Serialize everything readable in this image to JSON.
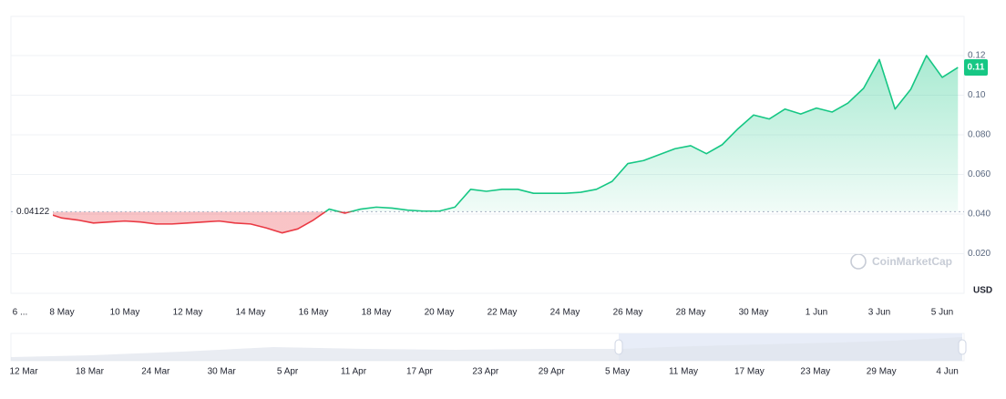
{
  "chart_data": {
    "type": "line",
    "categories": [
      "6 ...",
      null,
      null,
      "8 May",
      null,
      null,
      null,
      "10 May",
      null,
      null,
      null,
      "12 May",
      null,
      null,
      null,
      "14 May",
      null,
      null,
      null,
      "16 May",
      null,
      null,
      null,
      "18 May",
      null,
      null,
      null,
      "20 May",
      null,
      null,
      null,
      "22 May",
      null,
      null,
      null,
      "24 May",
      null,
      null,
      null,
      "26 May",
      null,
      null,
      null,
      "28 May",
      null,
      null,
      null,
      "30 May",
      null,
      null,
      null,
      "1 Jun",
      null,
      null,
      null,
      "3 Jun",
      null,
      null,
      null,
      "5 Jun",
      null
    ],
    "values": [
      0.0412,
      0.041,
      0.0405,
      0.038,
      0.037,
      0.0355,
      0.036,
      0.0365,
      0.036,
      0.035,
      0.035,
      0.0355,
      0.036,
      0.0365,
      0.0355,
      0.035,
      0.033,
      0.0305,
      0.0325,
      0.037,
      0.0425,
      0.0405,
      0.0425,
      0.0435,
      0.043,
      0.042,
      0.0415,
      0.0415,
      0.0435,
      0.0525,
      0.0515,
      0.0525,
      0.0525,
      0.0505,
      0.0505,
      0.0505,
      0.051,
      0.0525,
      0.0565,
      0.0655,
      0.067,
      0.07,
      0.073,
      0.0745,
      0.0705,
      0.075,
      0.083,
      0.09,
      0.088,
      0.093,
      0.0905,
      0.0935,
      0.0915,
      0.096,
      0.1035,
      0.118,
      0.093,
      0.103,
      0.12,
      0.109,
      0.114
    ],
    "baseline": 0.04122,
    "last_value_label": "0.11",
    "up_color": "#16c784",
    "down_color": "#ea3943",
    "ylim": [
      0,
      0.14
    ],
    "yticks": [
      {
        "value": 0.02,
        "label": "0.020"
      },
      {
        "value": 0.04,
        "label": "0.040"
      },
      {
        "value": 0.06,
        "label": "0.060"
      },
      {
        "value": 0.08,
        "label": "0.080"
      },
      {
        "value": 0.1,
        "label": "0.10"
      },
      0.12
    ],
    "grid": true,
    "currency": "USD",
    "watermark": "CoinMarketCap"
  },
  "navigator": {
    "labels": [
      "12 Mar",
      "18 Mar",
      "24 Mar",
      "30 Mar",
      "5 Apr",
      "11 Apr",
      "17 Apr",
      "23 Apr",
      "29 Apr",
      "5 May",
      "11 May",
      "17 May",
      "23 May",
      "29 May",
      "4 Jun"
    ]
  }
}
